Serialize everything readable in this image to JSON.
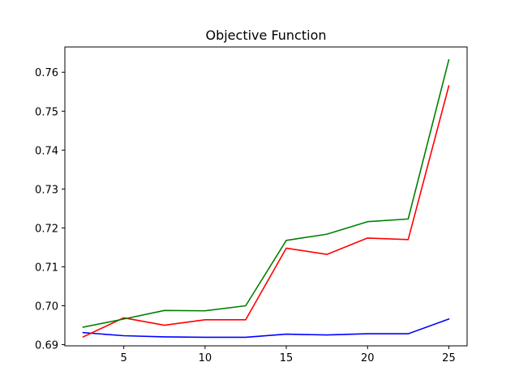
{
  "chart_data": {
    "type": "line",
    "title": "Objective Function",
    "xlabel": "",
    "ylabel": "",
    "x": [
      2.5,
      5,
      7.5,
      10,
      12.5,
      15,
      17.5,
      20,
      22.5,
      25
    ],
    "xlim": [
      1.375,
      26.125
    ],
    "ylim": [
      0.6897,
      0.7665
    ],
    "xticks": [
      5,
      10,
      15,
      20,
      25
    ],
    "yticks": [
      0.69,
      0.7,
      0.71,
      0.72,
      0.73,
      0.74,
      0.75,
      0.76
    ],
    "xtick_labels": [
      "5",
      "10",
      "15",
      "20",
      "25"
    ],
    "ytick_labels": [
      "0.69",
      "0.70",
      "0.71",
      "0.72",
      "0.73",
      "0.74",
      "0.75",
      "0.76"
    ],
    "grid": false,
    "legend": "none",
    "series": [
      {
        "color": "#0000ff",
        "values": [
          0.6931,
          0.6923,
          0.692,
          0.6919,
          0.6919,
          0.6927,
          0.6925,
          0.6928,
          0.6928,
          0.6966
        ]
      },
      {
        "color": "#ff0000",
        "values": [
          0.692,
          0.6969,
          0.695,
          0.6964,
          0.6964,
          0.7148,
          0.7132,
          0.7174,
          0.717,
          0.7565
        ]
      },
      {
        "color": "#008000",
        "values": [
          0.6945,
          0.6966,
          0.6988,
          0.6987,
          0.7,
          0.7168,
          0.7184,
          0.7216,
          0.7223,
          0.7632
        ]
      }
    ]
  }
}
